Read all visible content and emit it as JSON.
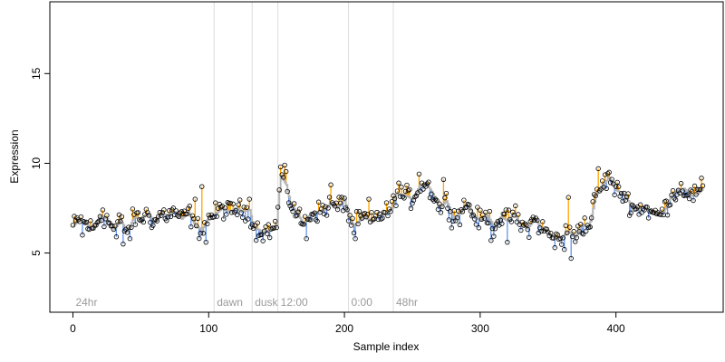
{
  "chart_data": {
    "type": "scatter",
    "title": "",
    "xlabel": "Sample index",
    "ylabel": "Expression",
    "xlim": [
      -17,
      479
    ],
    "ylim": [
      1.7,
      19.0
    ],
    "x_ticks": [
      0,
      100,
      200,
      300,
      400
    ],
    "y_ticks": [
      5,
      10,
      15
    ],
    "grid": false,
    "legend": "none",
    "colors": {
      "above": "#ffa500",
      "below": "#6495ed",
      "fit": "#b5b5b5",
      "point": "#000000",
      "divider": "#dcdcdc",
      "region_label": "#9b9b9b"
    },
    "regions": [
      {
        "label": "24hr",
        "start": 0
      },
      {
        "label": "dawn",
        "start": 104
      },
      {
        "label": "dusk",
        "start": 132
      },
      {
        "label": "12:00",
        "start": 151
      },
      {
        "label": "0:00",
        "start": 203
      },
      {
        "label": "48hr",
        "start": 236
      }
    ],
    "dividers": [
      104,
      132,
      151,
      203,
      236
    ],
    "anchors": [
      [
        0,
        6.5
      ],
      [
        5,
        6.9
      ],
      [
        10,
        6.6
      ],
      [
        15,
        6.3
      ],
      [
        20,
        7.1
      ],
      [
        25,
        6.9
      ],
      [
        30,
        6.3
      ],
      [
        35,
        6.8
      ],
      [
        40,
        6.2
      ],
      [
        45,
        7.0
      ],
      [
        50,
        6.9
      ],
      [
        55,
        7.2
      ],
      [
        60,
        6.7
      ],
      [
        65,
        7.2
      ],
      [
        70,
        7.1
      ],
      [
        75,
        7.3
      ],
      [
        80,
        6.9
      ],
      [
        85,
        7.3
      ],
      [
        90,
        6.5
      ],
      [
        95,
        6.3
      ],
      [
        100,
        7.0
      ],
      [
        105,
        7.2
      ],
      [
        110,
        7.5
      ],
      [
        115,
        7.3
      ],
      [
        120,
        7.5
      ],
      [
        125,
        7.3
      ],
      [
        130,
        7.4
      ],
      [
        133,
        6.4
      ],
      [
        140,
        6.2
      ],
      [
        147,
        6.3
      ],
      [
        150,
        6.6
      ],
      [
        153,
        9.3
      ],
      [
        157,
        8.8
      ],
      [
        160,
        7.8
      ],
      [
        165,
        7.2
      ],
      [
        170,
        6.6
      ],
      [
        175,
        7.2
      ],
      [
        180,
        7.3
      ],
      [
        185,
        7.4
      ],
      [
        190,
        7.8
      ],
      [
        195,
        7.5
      ],
      [
        200,
        8.0
      ],
      [
        203,
        7.0
      ],
      [
        207,
        6.5
      ],
      [
        211,
        6.8
      ],
      [
        215,
        7.0
      ],
      [
        220,
        6.7
      ],
      [
        225,
        7.1
      ],
      [
        230,
        7.2
      ],
      [
        235,
        7.5
      ],
      [
        238,
        8.3
      ],
      [
        245,
        8.2
      ],
      [
        250,
        8.0
      ],
      [
        255,
        8.7
      ],
      [
        260,
        8.9
      ],
      [
        265,
        8.3
      ],
      [
        270,
        7.5
      ],
      [
        275,
        7.9
      ],
      [
        280,
        7.0
      ],
      [
        285,
        7.2
      ],
      [
        290,
        7.8
      ],
      [
        295,
        7.1
      ],
      [
        300,
        6.8
      ],
      [
        305,
        7.1
      ],
      [
        310,
        6.5
      ],
      [
        315,
        7.0
      ],
      [
        320,
        6.8
      ],
      [
        325,
        7.2
      ],
      [
        330,
        6.5
      ],
      [
        335,
        6.4
      ],
      [
        340,
        6.9
      ],
      [
        345,
        6.4
      ],
      [
        350,
        6.1
      ],
      [
        355,
        5.8
      ],
      [
        360,
        5.9
      ],
      [
        365,
        6.2
      ],
      [
        370,
        5.9
      ],
      [
        375,
        6.6
      ],
      [
        380,
        6.4
      ],
      [
        385,
        8.2
      ],
      [
        390,
        8.8
      ],
      [
        395,
        9.2
      ],
      [
        400,
        8.5
      ],
      [
        405,
        8.3
      ],
      [
        410,
        7.8
      ],
      [
        415,
        7.4
      ],
      [
        420,
        7.6
      ],
      [
        425,
        7.3
      ],
      [
        430,
        7.1
      ],
      [
        435,
        7.3
      ],
      [
        440,
        8.1
      ],
      [
        445,
        8.5
      ],
      [
        450,
        8.6
      ],
      [
        455,
        8.2
      ],
      [
        460,
        8.3
      ],
      [
        464,
        8.6
      ]
    ],
    "spikes": [
      [
        7,
        6.0
      ],
      [
        22,
        7.4
      ],
      [
        32,
        5.9
      ],
      [
        37,
        5.5
      ],
      [
        42,
        5.8
      ],
      [
        90,
        8.0
      ],
      [
        95,
        8.7
      ],
      [
        98,
        5.6
      ],
      [
        130,
        8.0
      ],
      [
        153,
        9.8
      ],
      [
        156,
        9.9
      ],
      [
        172,
        5.8
      ],
      [
        190,
        8.8
      ],
      [
        208,
        5.8
      ],
      [
        218,
        8.0
      ],
      [
        240,
        8.9
      ],
      [
        255,
        9.4
      ],
      [
        273,
        9.1
      ],
      [
        308,
        5.7
      ],
      [
        320,
        5.6
      ],
      [
        355,
        5.3
      ],
      [
        362,
        5.2
      ],
      [
        365,
        8.1
      ],
      [
        367,
        4.7
      ],
      [
        372,
        6.5
      ],
      [
        387,
        9.7
      ],
      [
        395,
        9.5
      ]
    ],
    "noise_amplitude": 0.55
  }
}
